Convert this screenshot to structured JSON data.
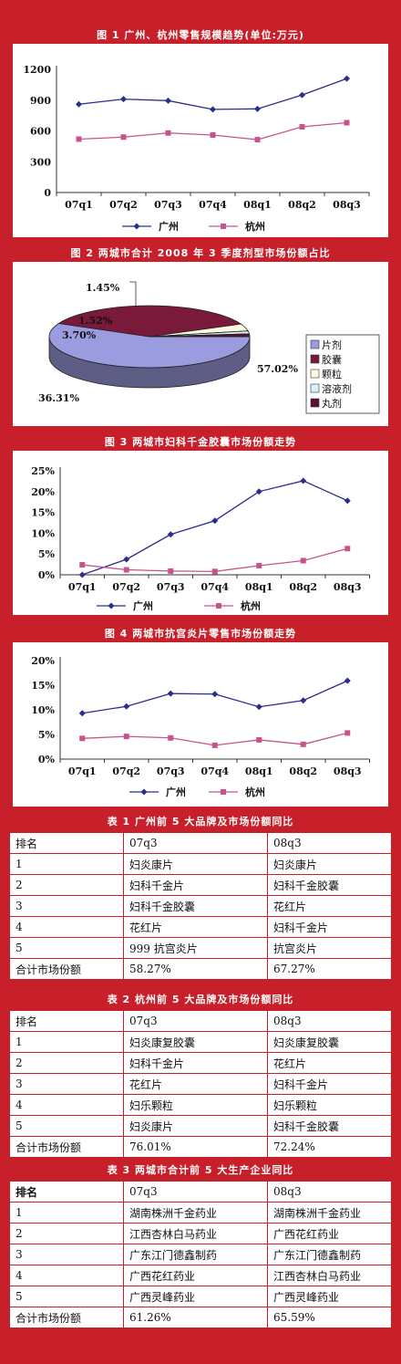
{
  "fig1": {
    "title": "图 1  广州、杭州零售规模趋势(单位:万元)",
    "chart_data": {
      "type": "line",
      "categories": [
        "07q1",
        "07q2",
        "07q3",
        "07q4",
        "08q1",
        "08q2",
        "08q3"
      ],
      "series": [
        {
          "name": "广州",
          "values": [
            860,
            910,
            895,
            810,
            815,
            950,
            1110
          ],
          "color": "#2b2d8a",
          "marker": "diamond"
        },
        {
          "name": "杭州",
          "values": [
            520,
            540,
            580,
            560,
            515,
            640,
            680
          ],
          "color": "#c8538a",
          "marker": "square"
        }
      ],
      "ylim": [
        0,
        1200
      ],
      "yticks": [
        "0",
        "300",
        "600",
        "900",
        "1200"
      ]
    }
  },
  "fig2": {
    "title": "图 2  两城市合计 2008 年 3 季度剂型市场份额占比",
    "chart_data": {
      "type": "pie",
      "labels": [
        "片剂",
        "胶囊",
        "颗粒",
        "溶液剂",
        "丸剂"
      ],
      "values": [
        57.02,
        36.31,
        3.7,
        1.52,
        1.45
      ],
      "value_labels": [
        "57.02%",
        "36.31%",
        "3.70%",
        "1.52%",
        "1.45%"
      ],
      "colors": [
        "#9b9be0",
        "#7a1a3a",
        "#fffbe0",
        "#d6f2f8",
        "#5a1030"
      ]
    }
  },
  "fig3": {
    "title": "图 3  两城市妇科千金胶囊市场份额走势",
    "chart_data": {
      "type": "line",
      "categories": [
        "07q1",
        "07q2",
        "07q3",
        "07q4",
        "08q1",
        "08q2",
        "08q3"
      ],
      "series": [
        {
          "name": "广州",
          "values": [
            0.0,
            3.7,
            9.7,
            13.0,
            20.0,
            22.6,
            17.8
          ],
          "color": "#2b2d8a",
          "marker": "diamond"
        },
        {
          "name": "杭州",
          "values": [
            2.4,
            1.2,
            0.9,
            0.8,
            2.2,
            3.4,
            6.3
          ],
          "color": "#c8538a",
          "marker": "square"
        }
      ],
      "ylim": [
        0,
        25
      ],
      "yticks": [
        "0%",
        "5%",
        "10%",
        "15%",
        "20%",
        "25%"
      ]
    }
  },
  "fig4": {
    "title": "图 4  两城市抗宫炎片零售市场份额走势",
    "chart_data": {
      "type": "line",
      "categories": [
        "07q1",
        "07q2",
        "07q3",
        "07q4",
        "08q1",
        "08q2",
        "08q3"
      ],
      "series": [
        {
          "name": "广州",
          "values": [
            9.3,
            10.7,
            13.3,
            13.2,
            10.6,
            11.9,
            15.9
          ],
          "color": "#2b2d8a",
          "marker": "diamond"
        },
        {
          "name": "杭州",
          "values": [
            4.2,
            4.6,
            4.3,
            2.8,
            3.9,
            3.0,
            5.3
          ],
          "color": "#c8538a",
          "marker": "square"
        }
      ],
      "ylim": [
        0,
        20
      ],
      "yticks": [
        "0%",
        "5%",
        "10%",
        "15%",
        "20%"
      ]
    }
  },
  "tables": [
    {
      "title": "表 1  广州前 5 大品牌及市场份额同比",
      "header": [
        "排名",
        "07q3",
        "08q3"
      ],
      "rows": [
        [
          "1",
          "妇炎康片",
          "妇炎康片"
        ],
        [
          "2",
          "妇科千金片",
          "妇科千金胶囊"
        ],
        [
          "3",
          "妇科千金胶囊",
          "花红片"
        ],
        [
          "4",
          "花红片",
          "妇科千金片"
        ],
        [
          "5",
          "999 抗宫炎片",
          "抗宫炎片"
        ],
        [
          "合计市场份额",
          "58.27%",
          "67.27%"
        ]
      ]
    },
    {
      "title": "表 2  杭州前 5 大品牌及市场份额同比",
      "header": [
        "排名",
        "07q3",
        "08q3"
      ],
      "rows": [
        [
          "1",
          "妇炎康复胶囊",
          "妇炎康复胶囊"
        ],
        [
          "2",
          "妇科千金片",
          "花红片"
        ],
        [
          "3",
          "花红片",
          "妇科千金片"
        ],
        [
          "4",
          "妇乐颗粒",
          "妇乐颗粒"
        ],
        [
          "5",
          "妇炎康片",
          "妇科千金胶囊"
        ],
        [
          "合计市场份额",
          "76.01%",
          "72.24%"
        ]
      ]
    },
    {
      "title": "表 3  两城市合计前 5 大生产企业同比",
      "header": [
        "排名",
        "07q3",
        "08q3"
      ],
      "rows": [
        [
          "1",
          "湖南株洲千金药业",
          "湖南株洲千金药业"
        ],
        [
          "2",
          "江西杏林白马药业",
          "广西花红药业"
        ],
        [
          "3",
          "广东江门德鑫制药",
          "广东江门德鑫制药"
        ],
        [
          "4",
          "广西花红药业",
          "江西杏林白马药业"
        ],
        [
          "5",
          "广西灵峰药业",
          "广西灵峰药业"
        ],
        [
          "合计市场份额",
          "61.26%",
          "65.59%"
        ]
      ]
    }
  ]
}
